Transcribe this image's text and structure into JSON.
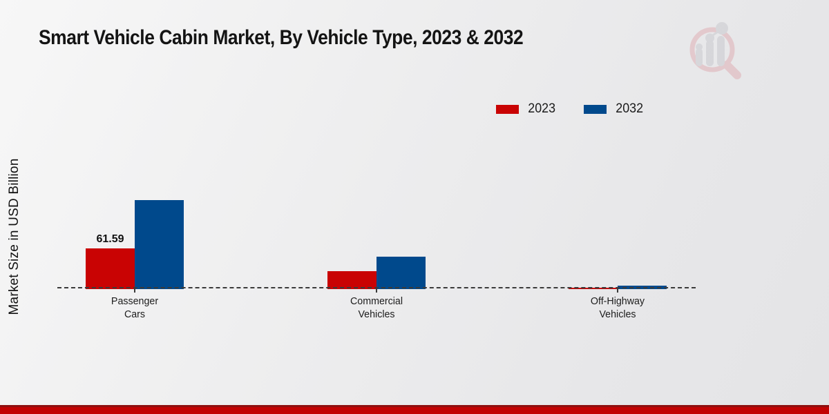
{
  "chart_data": {
    "type": "bar",
    "title": "Smart Vehicle Cabin Market, By Vehicle Type, 2023 & 2032",
    "ylabel": "Market Size in USD Billion",
    "xlabel": "",
    "categories": [
      [
        "Passenger",
        "Cars"
      ],
      [
        "Commercial",
        "Vehicles"
      ],
      [
        "Off-Highway",
        "Vehicles"
      ]
    ],
    "series": [
      {
        "name": "2023",
        "color": "#c90303",
        "values": [
          61.59,
          27.0,
          2.6
        ]
      },
      {
        "name": "2032",
        "color": "#00498c",
        "values": [
          135.0,
          49.0,
          5.2
        ]
      }
    ],
    "bar_label": {
      "category": 0,
      "series": 0,
      "text": "61.59"
    },
    "legend": {
      "position": "top-right",
      "entries": [
        "2023",
        "2032"
      ]
    },
    "axis": {
      "baseline_style": "dashed",
      "gridlines": false,
      "y_ticks_visible": false
    },
    "ylim": [
      0,
      160
    ]
  },
  "colors": {
    "series_2023": "#c90303",
    "series_2032": "#00498c",
    "footer_band": "#c20202",
    "baseline": "#3a3a3a"
  },
  "watermark": {
    "icon": "magnifier-bar-chart-logo"
  }
}
